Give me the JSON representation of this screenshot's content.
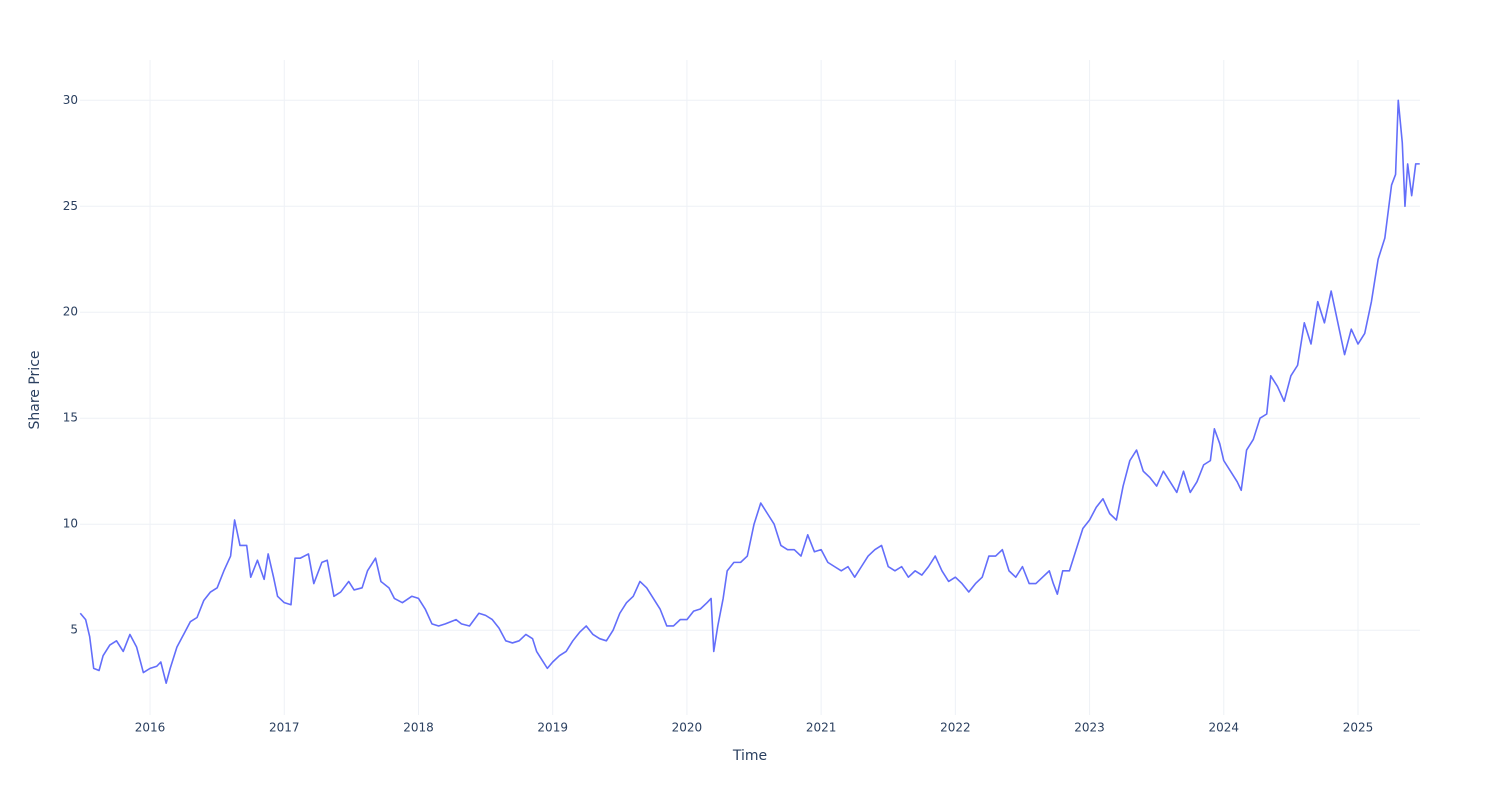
{
  "chart_data": {
    "type": "line",
    "xlabel": "Time",
    "ylabel": "Share Price",
    "x": [
      2015.48,
      2015.52,
      2015.55,
      2015.58,
      2015.62,
      2015.65,
      2015.7,
      2015.75,
      2015.8,
      2015.85,
      2015.9,
      2015.95,
      2016.0,
      2016.05,
      2016.08,
      2016.12,
      2016.15,
      2016.2,
      2016.25,
      2016.3,
      2016.35,
      2016.4,
      2016.45,
      2016.5,
      2016.55,
      2016.6,
      2016.63,
      2016.67,
      2016.72,
      2016.75,
      2016.8,
      2016.85,
      2016.88,
      2016.92,
      2016.95,
      2017.0,
      2017.05,
      2017.08,
      2017.12,
      2017.18,
      2017.22,
      2017.28,
      2017.32,
      2017.37,
      2017.42,
      2017.48,
      2017.52,
      2017.58,
      2017.62,
      2017.68,
      2017.72,
      2017.78,
      2017.82,
      2017.88,
      2017.95,
      2018.0,
      2018.05,
      2018.1,
      2018.15,
      2018.2,
      2018.28,
      2018.32,
      2018.38,
      2018.45,
      2018.5,
      2018.55,
      2018.6,
      2018.65,
      2018.7,
      2018.75,
      2018.8,
      2018.85,
      2018.88,
      2018.92,
      2018.96,
      2019.0,
      2019.05,
      2019.1,
      2019.15,
      2019.2,
      2019.25,
      2019.3,
      2019.35,
      2019.4,
      2019.45,
      2019.5,
      2019.55,
      2019.6,
      2019.65,
      2019.7,
      2019.75,
      2019.8,
      2019.85,
      2019.9,
      2019.95,
      2020.0,
      2020.05,
      2020.1,
      2020.15,
      2020.18,
      2020.2,
      2020.23,
      2020.27,
      2020.3,
      2020.35,
      2020.4,
      2020.45,
      2020.5,
      2020.55,
      2020.6,
      2020.65,
      2020.7,
      2020.75,
      2020.8,
      2020.85,
      2020.9,
      2020.95,
      2021.0,
      2021.05,
      2021.1,
      2021.15,
      2021.2,
      2021.25,
      2021.3,
      2021.35,
      2021.4,
      2021.45,
      2021.5,
      2021.55,
      2021.6,
      2021.65,
      2021.7,
      2021.75,
      2021.8,
      2021.85,
      2021.9,
      2021.95,
      2022.0,
      2022.05,
      2022.1,
      2022.15,
      2022.2,
      2022.25,
      2022.3,
      2022.35,
      2022.4,
      2022.45,
      2022.5,
      2022.55,
      2022.6,
      2022.65,
      2022.7,
      2022.73,
      2022.76,
      2022.8,
      2022.85,
      2022.9,
      2022.95,
      2023.0,
      2023.05,
      2023.1,
      2023.15,
      2023.2,
      2023.25,
      2023.3,
      2023.35,
      2023.4,
      2023.45,
      2023.5,
      2023.55,
      2023.6,
      2023.65,
      2023.7,
      2023.75,
      2023.8,
      2023.85,
      2023.9,
      2023.93,
      2023.97,
      2024.0,
      2024.05,
      2024.1,
      2024.13,
      2024.17,
      2024.22,
      2024.27,
      2024.32,
      2024.35,
      2024.4,
      2024.45,
      2024.5,
      2024.55,
      2024.6,
      2024.65,
      2024.7,
      2024.75,
      2024.8,
      2024.85,
      2024.9,
      2024.95,
      2025.0,
      2025.05,
      2025.1,
      2025.15,
      2025.2,
      2025.25,
      2025.28,
      2025.3,
      2025.33,
      2025.35,
      2025.37,
      2025.4,
      2025.43,
      2025.46
    ],
    "series": [
      {
        "name": "Share Price",
        "color": "#636efa",
        "values": [
          5.8,
          5.5,
          4.7,
          3.2,
          3.1,
          3.8,
          4.3,
          4.5,
          4.0,
          4.8,
          4.2,
          3.0,
          3.2,
          3.3,
          3.5,
          2.5,
          3.2,
          4.2,
          4.8,
          5.4,
          5.6,
          6.4,
          6.8,
          7.0,
          7.8,
          8.5,
          10.2,
          9.0,
          9.0,
          7.5,
          8.3,
          7.4,
          8.6,
          7.5,
          6.6,
          6.3,
          6.2,
          8.4,
          8.4,
          8.6,
          7.2,
          8.2,
          8.3,
          6.6,
          6.8,
          7.3,
          6.9,
          7.0,
          7.8,
          8.4,
          7.3,
          7.0,
          6.5,
          6.3,
          6.6,
          6.5,
          6.0,
          5.3,
          5.2,
          5.3,
          5.5,
          5.3,
          5.2,
          5.8,
          5.7,
          5.5,
          5.1,
          4.5,
          4.4,
          4.5,
          4.8,
          4.6,
          4.0,
          3.6,
          3.2,
          3.5,
          3.8,
          4.0,
          4.5,
          4.9,
          5.2,
          4.8,
          4.6,
          4.5,
          5.0,
          5.8,
          6.3,
          6.6,
          7.3,
          7.0,
          6.5,
          6.0,
          5.2,
          5.2,
          5.5,
          5.5,
          5.9,
          6.0,
          6.3,
          6.5,
          4.0,
          5.2,
          6.5,
          7.8,
          8.2,
          8.2,
          8.5,
          10.0,
          11.0,
          10.5,
          10.0,
          9.0,
          8.8,
          8.8,
          8.5,
          9.5,
          8.7,
          8.8,
          8.2,
          8.0,
          7.8,
          8.0,
          7.5,
          8.0,
          8.5,
          8.8,
          9.0,
          8.0,
          7.8,
          8.0,
          7.5,
          7.8,
          7.6,
          8.0,
          8.5,
          7.8,
          7.3,
          7.5,
          7.2,
          6.8,
          7.2,
          7.5,
          8.5,
          8.5,
          8.8,
          7.8,
          7.5,
          8.0,
          7.2,
          7.2,
          7.5,
          7.8,
          7.2,
          6.7,
          7.8,
          7.8,
          8.8,
          9.8,
          10.2,
          10.8,
          11.2,
          10.5,
          10.2,
          11.8,
          13.0,
          13.5,
          12.5,
          12.2,
          11.8,
          12.5,
          12.0,
          11.5,
          12.5,
          11.5,
          12.0,
          12.8,
          13.0,
          14.5,
          13.8,
          13.0,
          12.5,
          12.0,
          11.6,
          13.5,
          14.0,
          15.0,
          15.2,
          17.0,
          16.5,
          15.8,
          17.0,
          17.5,
          19.5,
          18.5,
          20.5,
          19.5,
          21.0,
          19.5,
          18.0,
          19.2,
          18.5,
          19.0,
          20.5,
          22.5,
          23.5,
          26.0,
          26.5,
          30.0,
          28.0,
          25.0,
          27.0,
          25.5,
          27.0,
          27.0
        ]
      }
    ],
    "xlim": [
      2015.478,
      2025.462
    ],
    "xticks": [
      2016,
      2017,
      2018,
      2019,
      2020,
      2021,
      2022,
      2023,
      2024,
      2025
    ],
    "ylim": [
      1,
      31.9
    ],
    "yticks": [
      5,
      10,
      15,
      20,
      25,
      30
    ],
    "grid": true
  }
}
